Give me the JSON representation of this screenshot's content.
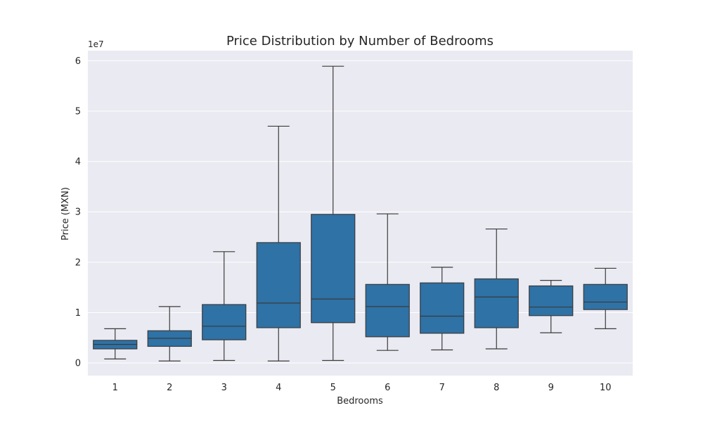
{
  "chart_data": {
    "type": "box",
    "title": "Price Distribution by Number of Bedrooms",
    "xlabel": "Bedrooms",
    "ylabel": "Price (MXN)",
    "y_offset_label": "1e7",
    "ylim": [
      -2500000,
      62000000
    ],
    "yticks": [
      0,
      10000000,
      20000000,
      30000000,
      40000000,
      50000000,
      60000000
    ],
    "ytick_labels": [
      "0",
      "1",
      "2",
      "3",
      "4",
      "5",
      "6"
    ],
    "grid": true,
    "colors": {
      "background": "#eaeaf2",
      "box": "#2e72a6",
      "line": "#3b3b3b",
      "grid": "#ffffff"
    },
    "categories": [
      "1",
      "2",
      "3",
      "4",
      "5",
      "6",
      "7",
      "8",
      "9",
      "10"
    ],
    "boxes": [
      {
        "category": "1",
        "whislo": 800000,
        "q1": 2800000,
        "med": 3700000,
        "q3": 4500000,
        "whishi": 6800000
      },
      {
        "category": "2",
        "whislo": 400000,
        "q1": 3300000,
        "med": 4900000,
        "q3": 6400000,
        "whishi": 11200000
      },
      {
        "category": "3",
        "whislo": 500000,
        "q1": 4600000,
        "med": 7300000,
        "q3": 11600000,
        "whishi": 22100000
      },
      {
        "category": "4",
        "whislo": 400000,
        "q1": 7000000,
        "med": 11900000,
        "q3": 23900000,
        "whishi": 47000000
      },
      {
        "category": "5",
        "whislo": 500000,
        "q1": 8000000,
        "med": 12700000,
        "q3": 29500000,
        "whishi": 58900000
      },
      {
        "category": "6",
        "whislo": 2500000,
        "q1": 5200000,
        "med": 11200000,
        "q3": 15600000,
        "whishi": 29600000
      },
      {
        "category": "7",
        "whislo": 2600000,
        "q1": 5900000,
        "med": 9300000,
        "q3": 15900000,
        "whishi": 19000000
      },
      {
        "category": "8",
        "whislo": 2800000,
        "q1": 7000000,
        "med": 13100000,
        "q3": 16700000,
        "whishi": 26600000
      },
      {
        "category": "9",
        "whislo": 6000000,
        "q1": 9400000,
        "med": 11100000,
        "q3": 15300000,
        "whishi": 16400000
      },
      {
        "category": "10",
        "whislo": 6800000,
        "q1": 10600000,
        "med": 12100000,
        "q3": 15600000,
        "whishi": 18800000
      }
    ]
  }
}
